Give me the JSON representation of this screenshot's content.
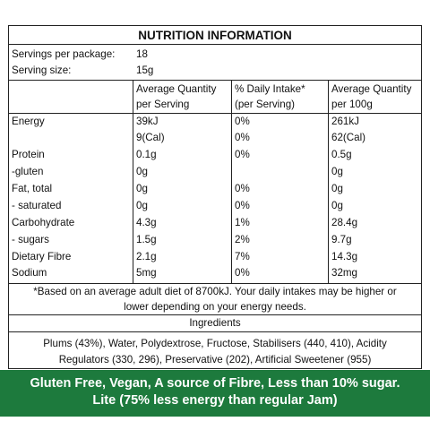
{
  "title": "NUTRITION INFORMATION",
  "servings_per_package": {
    "label": "Servings per package:",
    "value": "18"
  },
  "serving_size": {
    "label": "Serving size:",
    "value": "15g"
  },
  "headers": {
    "avg_serving_1": "Average Quantity",
    "avg_serving_2": "per Serving",
    "daily_1": "% Daily Intake*",
    "daily_2": "(per Serving)",
    "avg_100g_1": "Average Quantity",
    "avg_100g_2": "per 100g"
  },
  "rows": [
    {
      "name": "Energy",
      "serving": "39kJ",
      "daily": "0%",
      "per100": "261kJ"
    },
    {
      "name": "",
      "serving": "9(Cal)",
      "daily": "0%",
      "per100": "62(Cal)"
    },
    {
      "name": "Protein",
      "serving": "0.1g",
      "daily": "0%",
      "per100": "0.5g"
    },
    {
      "name": "-gluten",
      "serving": "0g",
      "daily": "",
      "per100": "0g"
    },
    {
      "name": "Fat, total",
      "serving": "0g",
      "daily": "0%",
      "per100": "0g"
    },
    {
      "name": "- saturated",
      "serving": "0g",
      "daily": "0%",
      "per100": "0g"
    },
    {
      "name": "Carbohydrate",
      "serving": "4.3g",
      "daily": "1%",
      "per100": "28.4g"
    },
    {
      "name": "- sugars",
      "serving": "1.5g",
      "daily": "2%",
      "per100": "9.7g"
    },
    {
      "name": "Dietary Fibre",
      "serving": "2.1g",
      "daily": "7%",
      "per100": "14.3g"
    },
    {
      "name": "Sodium",
      "serving": "5mg",
      "daily": "0%",
      "per100": "32mg"
    }
  ],
  "footnote_1": "*Based on an average adult diet of 8700kJ. Your daily intakes may be higher or",
  "footnote_2": "lower depending on your energy needs.",
  "ingredients_heading": "Ingredients",
  "ingredients_1": "Plums (43%), Water, Polydextrose, Fructose, Stabilisers (440, 410), Acidity",
  "ingredients_2": "Regulators (330, 296), Preservative (202), Artificial Sweetener (955)",
  "banner_1": "Gluten Free, Vegan, A source of Fibre, Less than 10% sugar.",
  "banner_2": "Lite (75% less energy than regular Jam)",
  "colors": {
    "banner_bg": "#1d7a3d",
    "banner_text": "#ffffff",
    "border": "#222222"
  }
}
